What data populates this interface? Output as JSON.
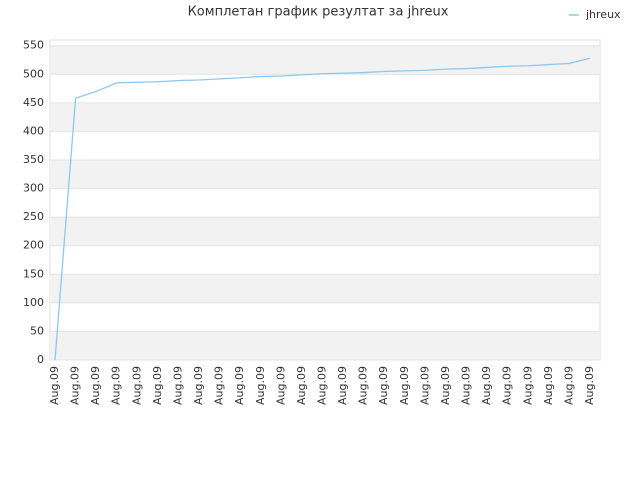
{
  "chart_data": {
    "type": "line",
    "title": "Комплетан график резултат за jhreux",
    "categories": [
      "Aug.09",
      "Aug.09",
      "Aug.09",
      "Aug.09",
      "Aug.09",
      "Aug.09",
      "Aug.09",
      "Aug.09",
      "Aug.09",
      "Aug.09",
      "Aug.09",
      "Aug.09",
      "Aug.09",
      "Aug.09",
      "Aug.09",
      "Aug.09",
      "Aug.09",
      "Aug.09",
      "Aug.09",
      "Aug.09",
      "Aug.09",
      "Aug.09",
      "Aug.09",
      "Aug.09",
      "Aug.09",
      "Aug.09",
      "Aug.09"
    ],
    "series": [
      {
        "name": "jhreux",
        "color": "#8ec8f0",
        "values": [
          0,
          458,
          470,
          485,
          486,
          487,
          489,
          490,
          492,
          494,
          496,
          497,
          499,
          501,
          502,
          503,
          505,
          506,
          507,
          509,
          510,
          512,
          514,
          515,
          517,
          519,
          528
        ]
      }
    ],
    "ylim": [
      0,
      560
    ],
    "yticks": [
      0,
      50,
      100,
      150,
      200,
      250,
      300,
      350,
      400,
      450,
      500,
      550
    ],
    "grid": true,
    "legend": "top-right"
  }
}
